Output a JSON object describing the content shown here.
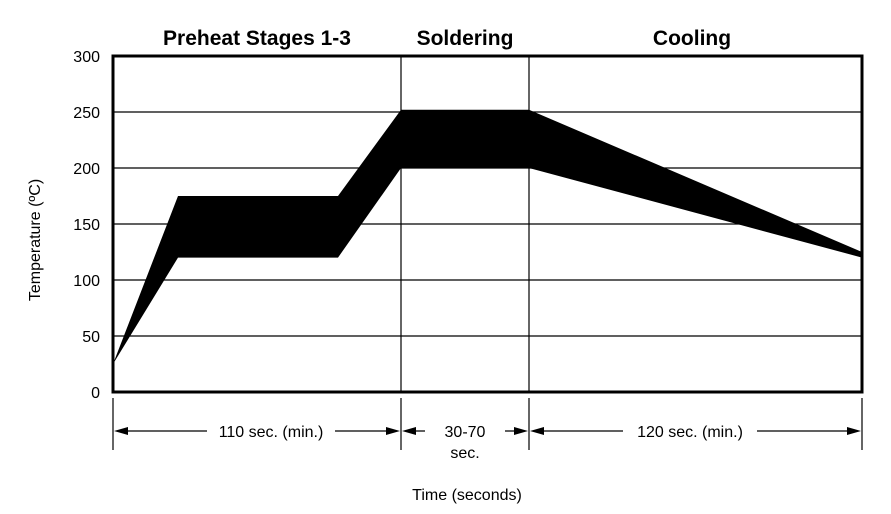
{
  "chart_data": {
    "type": "area",
    "ylabel": "Temperature (ºC)",
    "xlabel": "Time (seconds)",
    "ylim": [
      0,
      300
    ],
    "y_ticks": [
      "0",
      "50",
      "100",
      "150",
      "200",
      "250",
      "300"
    ],
    "grid": "horizontal",
    "stages": [
      {
        "label": "Preheat Stages 1-3"
      },
      {
        "label": "Soldering"
      },
      {
        "label": "Cooling"
      }
    ],
    "durations": [
      {
        "label": "110 sec. (min.)",
        "seconds_min": 110
      },
      {
        "label": "30-70",
        "sublabel": "sec.",
        "seconds_min": 30,
        "seconds_max": 70
      },
      {
        "label": "120 sec. (min.)",
        "seconds_min": 120
      }
    ],
    "series": [
      {
        "upper": [
          [
            0,
            25
          ],
          [
            25,
            175
          ],
          [
            85,
            175
          ],
          [
            110,
            252
          ],
          [
            160,
            252
          ],
          [
            290,
            125
          ]
        ],
        "lower": [
          [
            0,
            25
          ],
          [
            25,
            120
          ],
          [
            85,
            120
          ],
          [
            110,
            200
          ],
          [
            160,
            200
          ],
          [
            290,
            120
          ]
        ]
      }
    ]
  }
}
